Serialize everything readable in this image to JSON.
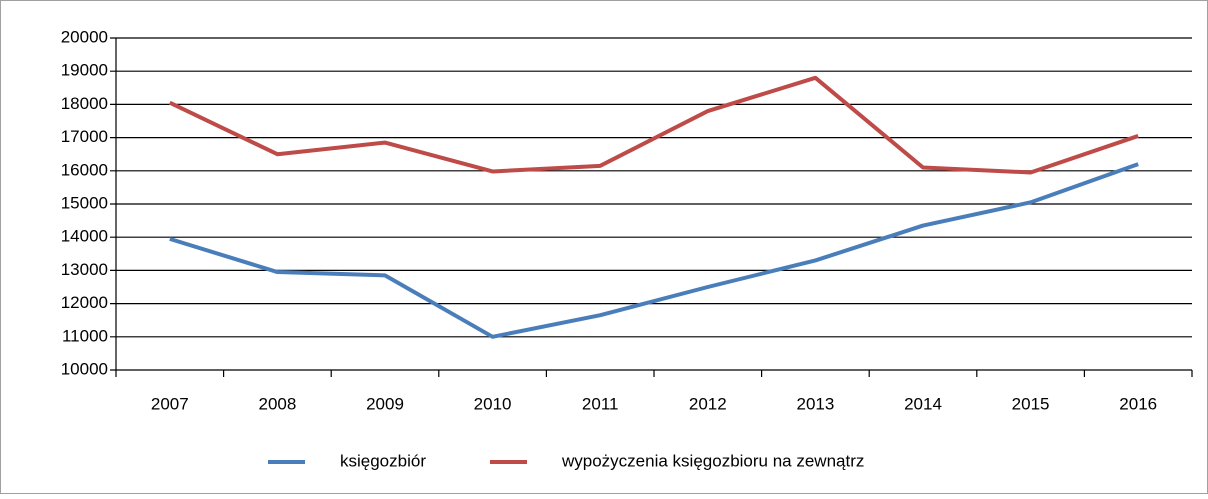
{
  "chart_data": {
    "type": "line",
    "categories": [
      "2007",
      "2008",
      "2009",
      "2010",
      "2011",
      "2012",
      "2013",
      "2014",
      "2015",
      "2016"
    ],
    "series": [
      {
        "name": "księgozbiór",
        "color": "#4a7ebb",
        "values": [
          13950,
          12950,
          12850,
          11000,
          11650,
          12500,
          13300,
          14350,
          15050,
          16200
        ]
      },
      {
        "name": "wypożyczenia księgozbioru na zewnątrz",
        "color": "#be4b48",
        "values": [
          18050,
          16500,
          16850,
          15980,
          16150,
          17800,
          18800,
          16100,
          15950,
          17050
        ]
      }
    ],
    "ylim": [
      10000,
      20000
    ],
    "yticks": [
      10000,
      11000,
      12000,
      13000,
      14000,
      15000,
      16000,
      17000,
      18000,
      19000,
      20000
    ],
    "grid": true,
    "legend": "bottom"
  }
}
